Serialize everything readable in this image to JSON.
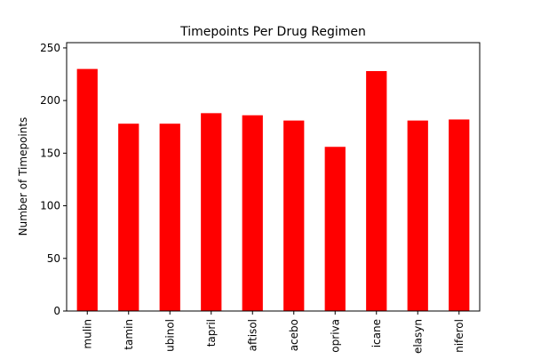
{
  "chart_data": {
    "type": "bar",
    "title": "Timepoints Per Drug Regimen",
    "xlabel": "",
    "ylabel": "Number of Timepoints",
    "categories": [
      "mulin",
      "tamin",
      "ubinol",
      "tapril",
      "aftisol",
      "acebo",
      "opriva",
      "icane",
      "elasyn",
      "niferol"
    ],
    "values": [
      230,
      178,
      178,
      188,
      186,
      181,
      156,
      228,
      181,
      182
    ],
    "ylim": [
      0,
      255
    ],
    "yticks": [
      0,
      50,
      100,
      150,
      200,
      250
    ],
    "bar_color": "#ff0000",
    "grid": false,
    "legend": "none"
  }
}
